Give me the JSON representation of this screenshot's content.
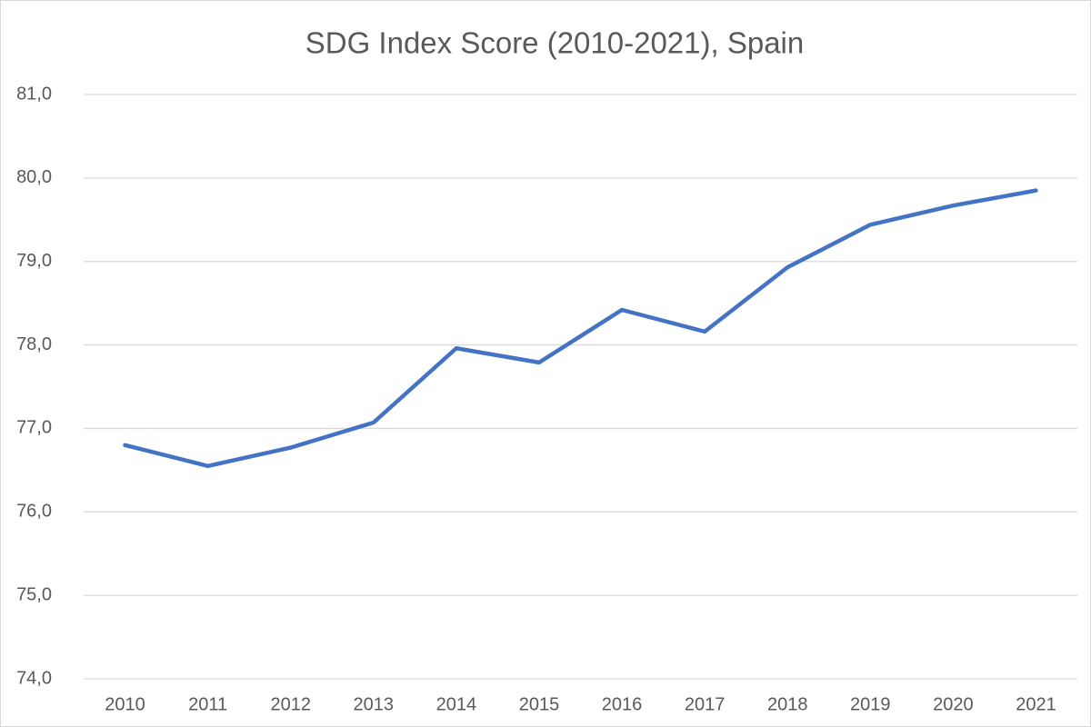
{
  "chart_data": {
    "type": "line",
    "title": "SDG Index Score (2010-2021), Spain",
    "categories": [
      "2010",
      "2011",
      "2012",
      "2013",
      "2014",
      "2015",
      "2016",
      "2017",
      "2018",
      "2019",
      "2020",
      "2021"
    ],
    "series": [
      {
        "color": "#4472c4",
        "values": [
          76.8,
          76.55,
          76.77,
          77.07,
          77.96,
          77.79,
          78.42,
          78.16,
          78.93,
          79.44,
          79.67,
          79.85
        ]
      }
    ],
    "ylim": [
      74,
      81
    ],
    "yticks": [
      {
        "value": 74,
        "label": "74,0"
      },
      {
        "value": 75,
        "label": "75,0"
      },
      {
        "value": 76,
        "label": "76,0"
      },
      {
        "value": 77,
        "label": "77,0"
      },
      {
        "value": 78,
        "label": "78,0"
      },
      {
        "value": 79,
        "label": "79,0"
      },
      {
        "value": 80,
        "label": "80,0"
      },
      {
        "value": 81,
        "label": "81,0"
      }
    ],
    "grid": true
  }
}
